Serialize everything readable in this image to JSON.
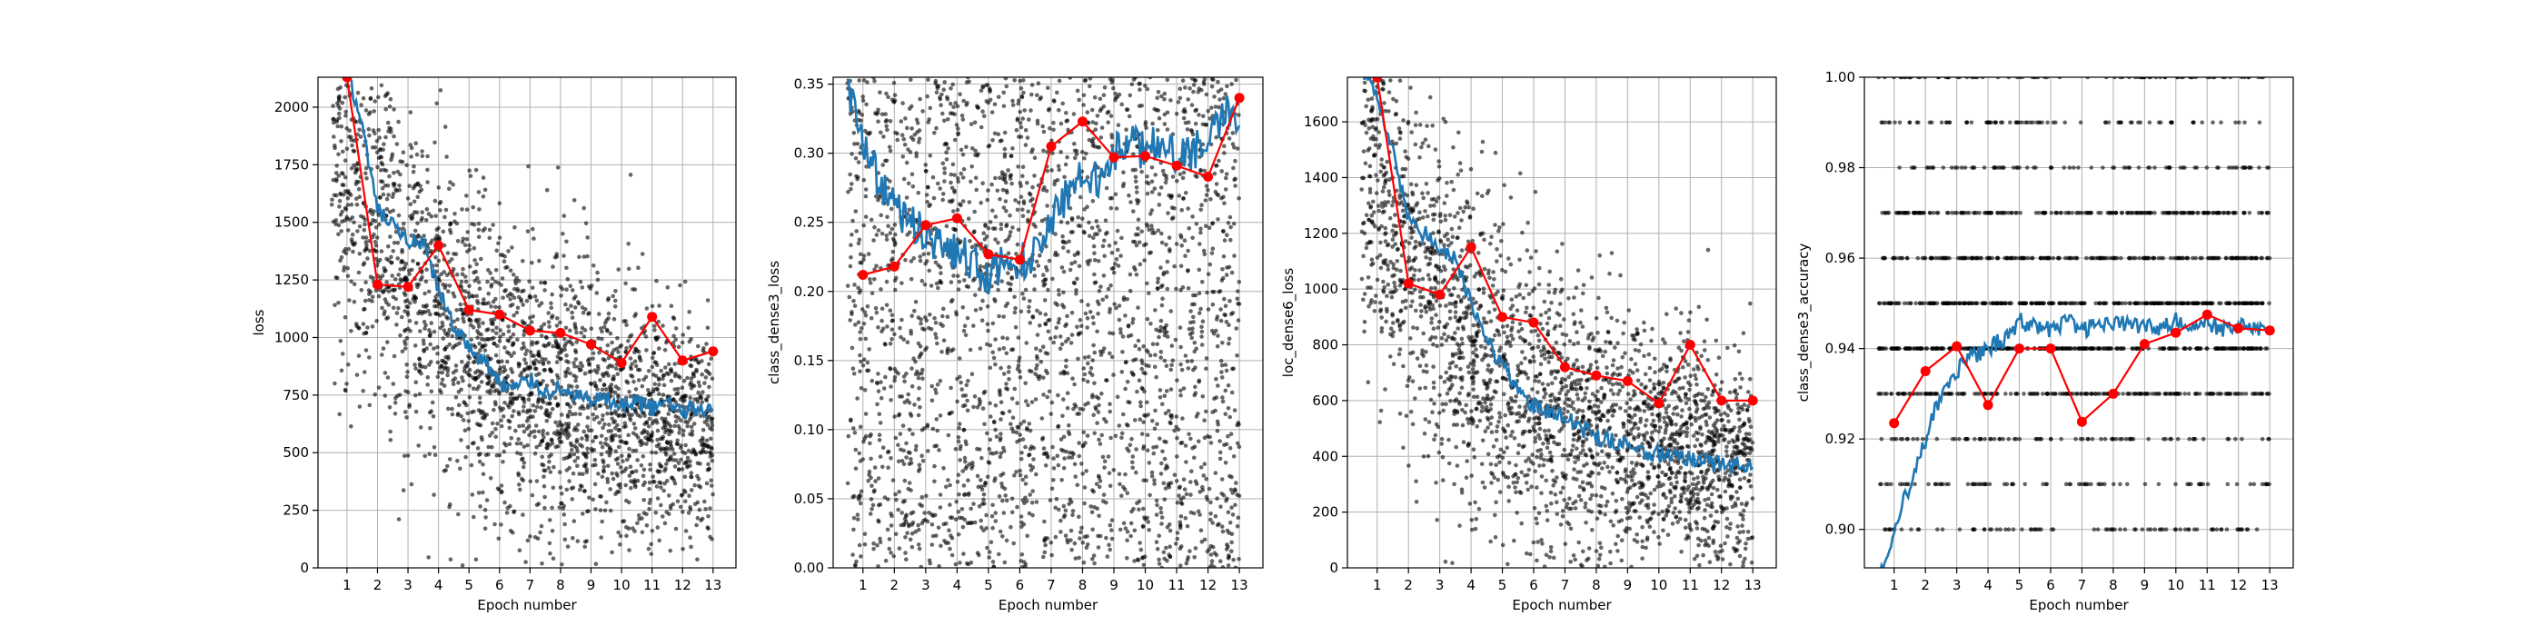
{
  "chart_data": [
    {
      "type": "line",
      "xlabel": "Epoch number",
      "ylabel": "loss",
      "xticks": [
        1,
        2,
        3,
        4,
        5,
        6,
        7,
        8,
        9,
        10,
        11,
        12,
        13
      ],
      "xlim": [
        0.05,
        13.75
      ],
      "ylim": [
        0,
        2130
      ],
      "yticks": [
        0,
        250,
        500,
        750,
        1000,
        1250,
        1500,
        1750,
        2000
      ],
      "ytick_labels": [
        "0",
        "250",
        "500",
        "750",
        "1000",
        "1250",
        "1500",
        "1750",
        "2000"
      ],
      "grid": true,
      "scatter_band": {
        "start": 1900,
        "end": 560,
        "spread": 420,
        "floor": 0,
        "cap": 2130
      },
      "batch_series": {
        "x": [
          0.5,
          1,
          1.5,
          2,
          2.5,
          3,
          3.5,
          4,
          4.5,
          5,
          5.5,
          6,
          6.5,
          7,
          7.5,
          8,
          8.5,
          9,
          9.5,
          10,
          10.5,
          11,
          11.5,
          12,
          12.5,
          13
        ],
        "y": [
          2150,
          2180,
          1900,
          1550,
          1480,
          1420,
          1400,
          1200,
          1050,
          950,
          900,
          800,
          780,
          820,
          760,
          780,
          750,
          720,
          730,
          700,
          720,
          690,
          720,
          680,
          700,
          690
        ]
      },
      "epoch_series": {
        "x": [
          1,
          2,
          3,
          4,
          5,
          6,
          7,
          8,
          9,
          10,
          11,
          12,
          13
        ],
        "y": [
          2130,
          1230,
          1220,
          1400,
          1120,
          1100,
          1030,
          1020,
          970,
          890,
          1090,
          900,
          940
        ]
      }
    },
    {
      "type": "line",
      "xlabel": "Epoch number",
      "ylabel": "class_dense3_loss",
      "xticks": [
        1,
        2,
        3,
        4,
        5,
        6,
        7,
        8,
        9,
        10,
        11,
        12,
        13
      ],
      "xlim": [
        0.05,
        13.75
      ],
      "ylim": [
        0,
        0.355
      ],
      "yticks": [
        0,
        0.05,
        0.1,
        0.15,
        0.2,
        0.25,
        0.3,
        0.35
      ],
      "ytick_labels": [
        "0.00",
        "0.05",
        "0.10",
        "0.15",
        "0.20",
        "0.25",
        "0.30",
        "0.35"
      ],
      "grid": true,
      "scatter_band": {
        "start": 0.2,
        "end": 0.2,
        "spread": 0.2,
        "floor": 0,
        "cap": 0.355
      },
      "batch_series": {
        "x": [
          0.5,
          1,
          1.5,
          2,
          2.5,
          3,
          3.5,
          4,
          4.5,
          5,
          5.5,
          6,
          6.5,
          7,
          7.5,
          8,
          8.5,
          9,
          9.5,
          10,
          10.5,
          11,
          11.5,
          12,
          12.5,
          13
        ],
        "y": [
          0.35,
          0.31,
          0.28,
          0.26,
          0.25,
          0.24,
          0.23,
          0.23,
          0.22,
          0.21,
          0.22,
          0.22,
          0.23,
          0.25,
          0.27,
          0.29,
          0.28,
          0.3,
          0.31,
          0.3,
          0.31,
          0.3,
          0.3,
          0.31,
          0.33,
          0.32
        ]
      },
      "epoch_series": {
        "x": [
          1,
          2,
          3,
          4,
          5,
          6,
          7,
          8,
          9,
          10,
          11,
          12,
          13
        ],
        "y": [
          0.212,
          0.218,
          0.248,
          0.253,
          0.227,
          0.223,
          0.305,
          0.323,
          0.297,
          0.298,
          0.291,
          0.283,
          0.34
        ]
      }
    },
    {
      "type": "line",
      "xlabel": "Epoch number",
      "ylabel": "loc_dense6_loss",
      "xticks": [
        1,
        2,
        3,
        4,
        5,
        6,
        7,
        8,
        9,
        10,
        11,
        12,
        13
      ],
      "xlim": [
        0.05,
        13.75
      ],
      "ylim": [
        0,
        1760
      ],
      "yticks": [
        0,
        200,
        400,
        600,
        800,
        1000,
        1200,
        1400,
        1600
      ],
      "ytick_labels": [
        "0",
        "200",
        "400",
        "600",
        "800",
        "1000",
        "1200",
        "1400",
        "1600"
      ],
      "grid": true,
      "scatter_band": {
        "start": 1500,
        "end": 330,
        "spread": 330,
        "floor": 0,
        "cap": 1760
      },
      "batch_series": {
        "x": [
          0.5,
          1,
          1.5,
          2,
          2.5,
          3,
          3.5,
          4,
          4.5,
          5,
          5.5,
          6,
          6.5,
          7,
          7.5,
          8,
          8.5,
          9,
          9.5,
          10,
          10.5,
          11,
          11.5,
          12,
          12.5,
          13
        ],
        "y": [
          1780,
          1700,
          1500,
          1250,
          1200,
          1150,
          1100,
          950,
          820,
          720,
          650,
          580,
          560,
          540,
          500,
          470,
          460,
          440,
          420,
          410,
          400,
          390,
          380,
          370,
          370,
          360
        ]
      },
      "epoch_series": {
        "x": [
          1,
          2,
          3,
          4,
          5,
          6,
          7,
          8,
          9,
          10,
          11,
          12,
          13
        ],
        "y": [
          1760,
          1020,
          980,
          1150,
          900,
          880,
          720,
          690,
          670,
          590,
          800,
          600,
          600
        ]
      }
    },
    {
      "type": "line",
      "xlabel": "Epoch number",
      "ylabel": "class_dense3_accuracy",
      "xticks": [
        1,
        2,
        3,
        4,
        5,
        6,
        7,
        8,
        9,
        10,
        11,
        12,
        13
      ],
      "xlim": [
        0.05,
        13.75
      ],
      "ylim": [
        0.8915,
        1.0
      ],
      "yticks": [
        0.9,
        0.92,
        0.94,
        0.96,
        0.98,
        1.0
      ],
      "ytick_labels": [
        "0.90",
        "0.92",
        "0.94",
        "0.96",
        "0.98",
        "1.00"
      ],
      "grid": true,
      "scatter_levels": [
        0.9,
        0.91,
        0.92,
        0.93,
        0.94,
        0.95,
        0.96,
        0.97,
        0.98,
        0.99,
        1.0
      ],
      "batch_series": {
        "x": [
          0.5,
          1,
          1.5,
          2,
          2.5,
          3,
          3.5,
          4,
          4.5,
          5,
          5.5,
          6,
          6.5,
          7,
          7.5,
          8,
          8.5,
          9,
          9.5,
          10,
          10.5,
          11,
          11.5,
          12,
          12.5,
          13
        ],
        "y": [
          0.89,
          0.9,
          0.91,
          0.92,
          0.93,
          0.935,
          0.938,
          0.94,
          0.942,
          0.946,
          0.945,
          0.944,
          0.946,
          0.944,
          0.945,
          0.946,
          0.945,
          0.945,
          0.944,
          0.946,
          0.945,
          0.946,
          0.944,
          0.945,
          0.945,
          0.944
        ]
      },
      "epoch_series": {
        "x": [
          1,
          2,
          3,
          4,
          5,
          6,
          7,
          8,
          9,
          10,
          11,
          12,
          13
        ],
        "y": [
          0.9235,
          0.935,
          0.9405,
          0.9275,
          0.94,
          0.94,
          0.9238,
          0.93,
          0.941,
          0.9435,
          0.9475,
          0.9445,
          0.944
        ]
      }
    }
  ]
}
